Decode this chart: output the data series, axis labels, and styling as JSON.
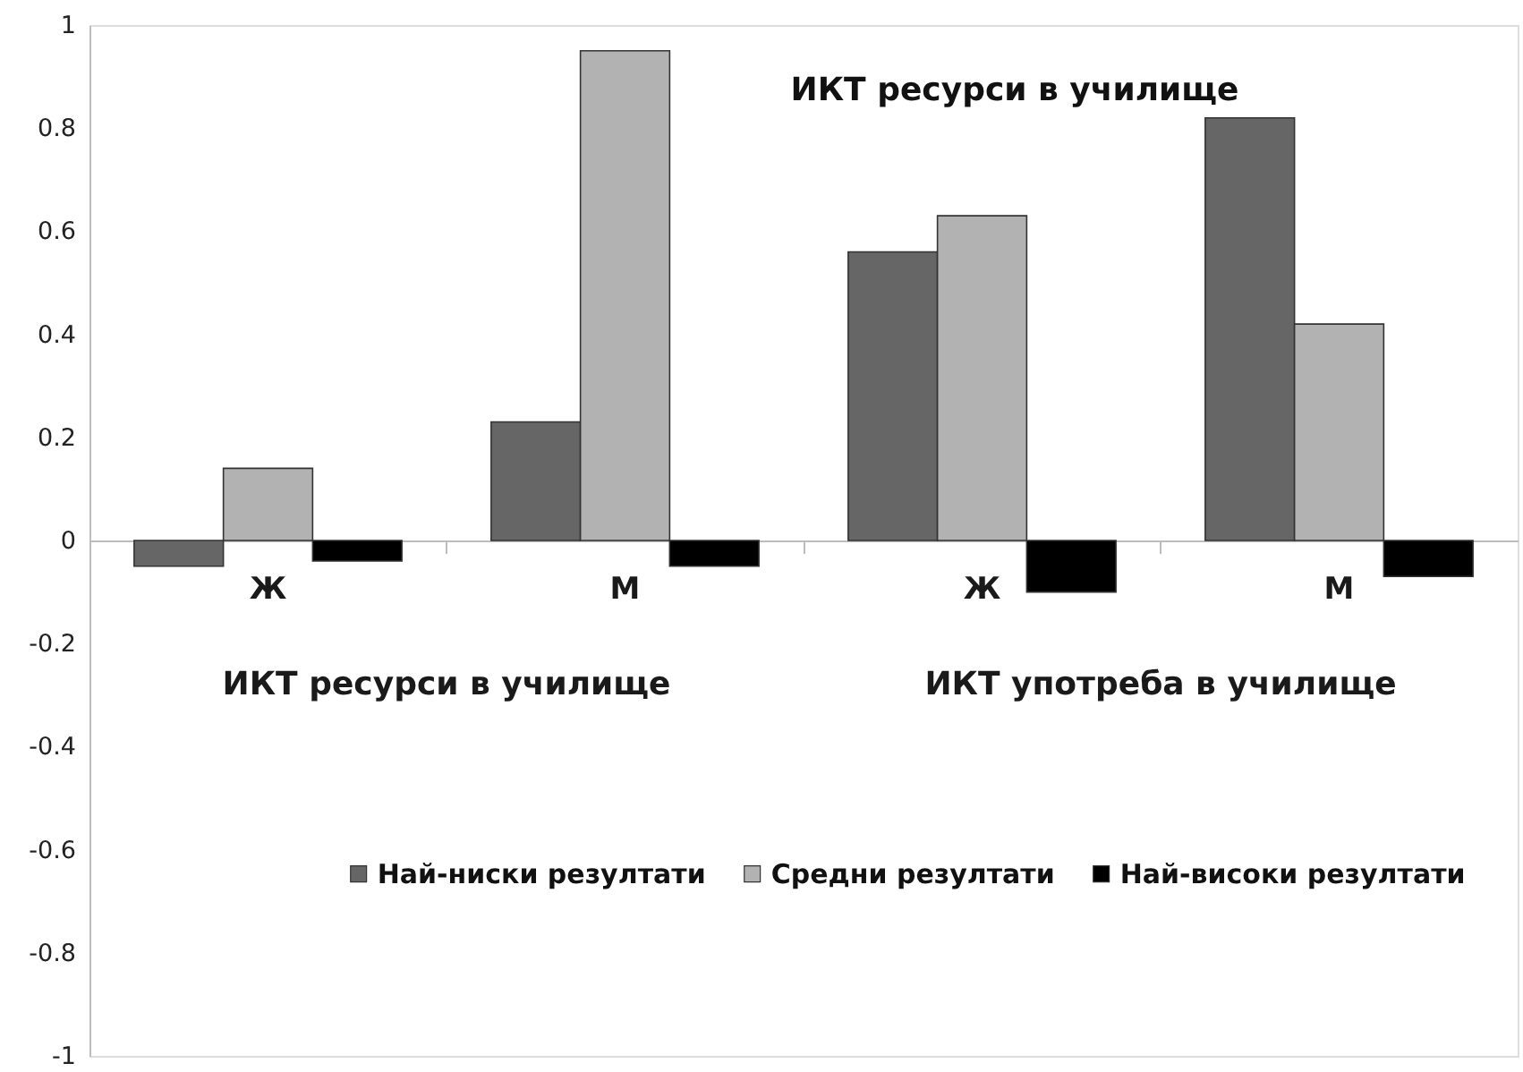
{
  "chart_data": {
    "type": "bar",
    "title": "ИКТ ресурси в училище",
    "categories": [
      "Ж",
      "М",
      "Ж",
      "М"
    ],
    "series": [
      {
        "name": "Най-ниски резултати",
        "color": "#666666",
        "values": [
          -0.05,
          0.23,
          0.56,
          0.82
        ]
      },
      {
        "name": "Средни резултати",
        "color": "#b2b2b2",
        "values": [
          0.14,
          0.95,
          0.63,
          0.42
        ]
      },
      {
        "name": "Най-високи резултати",
        "color": "#000000",
        "values": [
          -0.04,
          -0.05,
          -0.1,
          -0.07
        ]
      }
    ],
    "ylim": [
      -1,
      1
    ],
    "yticks": [
      -1,
      -0.8,
      -0.6,
      -0.4,
      -0.2,
      0,
      0.2,
      0.4,
      0.6,
      0.8,
      1
    ],
    "grid": false,
    "legend": "bottom right",
    "annotations": [
      "ИКТ ресурси в училище",
      "ИКТ употреба в училище"
    ]
  }
}
